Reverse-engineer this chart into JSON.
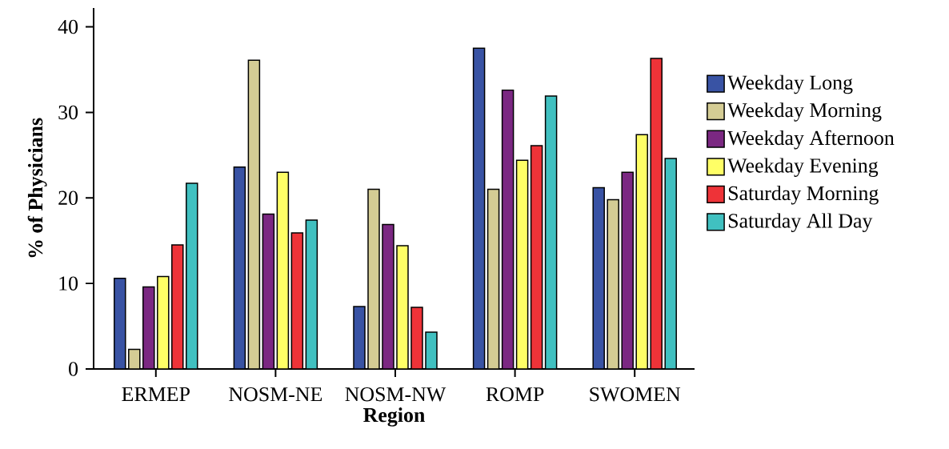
{
  "chart_data": {
    "type": "bar",
    "xlabel": "Region",
    "ylabel": "% of Physicians",
    "categories": [
      "ERMEP",
      "NOSM-NE",
      "NOSM-NW",
      "ROMP",
      "SWOMEN"
    ],
    "series": [
      {
        "name": "Weekday Long",
        "color": "#3953a4",
        "values": [
          10.6,
          23.6,
          7.3,
          37.5,
          21.2
        ]
      },
      {
        "name": "Weekday Morning",
        "color": "#d4cc94",
        "values": [
          2.3,
          36.1,
          21.0,
          21.0,
          19.8
        ]
      },
      {
        "name": "Weekday Afternoon",
        "color": "#7b2882",
        "values": [
          9.6,
          18.1,
          16.9,
          32.6,
          23.0
        ]
      },
      {
        "name": "Weekday Evening",
        "color": "#ffff66",
        "values": [
          10.8,
          23.0,
          14.4,
          24.4,
          27.4
        ]
      },
      {
        "name": "Saturday Morning",
        "color": "#ee3338",
        "values": [
          14.5,
          15.9,
          7.2,
          26.1,
          36.3
        ]
      },
      {
        "name": "Saturday All Day",
        "color": "#40c0c0",
        "values": [
          21.7,
          17.4,
          4.3,
          31.9,
          24.6
        ]
      }
    ],
    "ylim": [
      0,
      42.2
    ],
    "yticks": [
      0,
      10,
      20,
      30,
      40
    ],
    "legend": "right"
  }
}
